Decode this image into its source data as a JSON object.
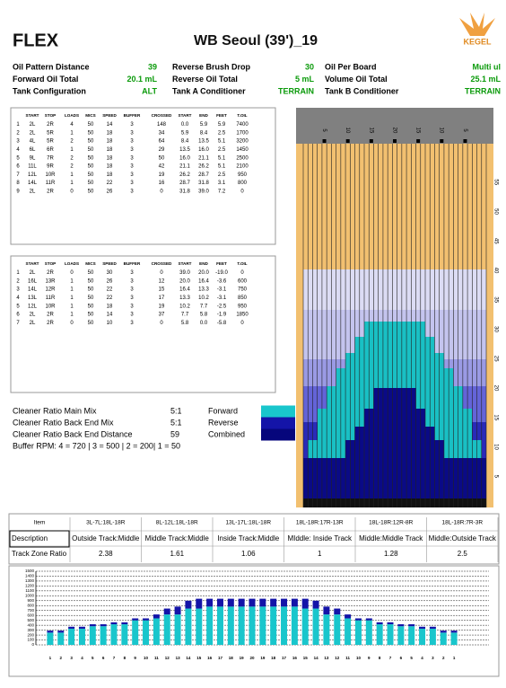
{
  "header": {
    "logo": "FLEX",
    "title": "WB Seoul (39')_19",
    "brand": "KEGEL"
  },
  "summary": [
    [
      {
        "label": "Oil Pattern Distance",
        "value": "39"
      },
      {
        "label": "Reverse Brush Drop",
        "value": "30"
      },
      {
        "label": "Oil Per Board",
        "value": "Multi ul"
      }
    ],
    [
      {
        "label": "Forward Oil Total",
        "value": "20.1 mL"
      },
      {
        "label": "Reverse Oil Total",
        "value": "5 mL"
      },
      {
        "label": "Volume Oil Total",
        "value": "25.1 mL"
      }
    ],
    [
      {
        "label": "Tank Configuration",
        "value": "ALT"
      },
      {
        "label": "Tank A Conditioner",
        "value": "TERRAIN"
      },
      {
        "label": "Tank B Conditioner",
        "value": "TERRAIN"
      }
    ]
  ],
  "forward_table": {
    "columns": [
      "START",
      "STOP",
      "LOADS",
      "MICS",
      "SPEED",
      "BUFFER",
      "CROSSED",
      "START",
      "END",
      "FEET",
      "T.OIL"
    ],
    "rows": [
      [
        "1",
        "2L",
        "2R",
        "4",
        "50",
        "14",
        "3",
        "148",
        "0.0",
        "5.9",
        "5.9",
        "7400"
      ],
      [
        "2",
        "2L",
        "5R",
        "1",
        "50",
        "18",
        "3",
        "34",
        "5.9",
        "8.4",
        "2.5",
        "1700"
      ],
      [
        "3",
        "4L",
        "5R",
        "2",
        "50",
        "18",
        "3",
        "64",
        "8.4",
        "13.5",
        "5.1",
        "3200"
      ],
      [
        "4",
        "6L",
        "6R",
        "1",
        "50",
        "18",
        "3",
        "29",
        "13.5",
        "16.0",
        "2.5",
        "1450"
      ],
      [
        "5",
        "9L",
        "7R",
        "2",
        "50",
        "18",
        "3",
        "50",
        "16.0",
        "21.1",
        "5.1",
        "2500"
      ],
      [
        "6",
        "11L",
        "9R",
        "2",
        "50",
        "18",
        "3",
        "42",
        "21.1",
        "26.2",
        "5.1",
        "2100"
      ],
      [
        "7",
        "12L",
        "10R",
        "1",
        "50",
        "18",
        "3",
        "19",
        "26.2",
        "28.7",
        "2.5",
        "950"
      ],
      [
        "8",
        "14L",
        "11R",
        "1",
        "50",
        "22",
        "3",
        "16",
        "28.7",
        "31.8",
        "3.1",
        "800"
      ],
      [
        "9",
        "2L",
        "2R",
        "0",
        "50",
        "26",
        "3",
        "0",
        "31.8",
        "39.0",
        "7.2",
        "0"
      ]
    ]
  },
  "reverse_table": {
    "columns": [
      "START",
      "STOP",
      "LOADS",
      "MICS",
      "SPEED",
      "BUFFER",
      "CROSSED",
      "START",
      "END",
      "FEET",
      "T.OIL"
    ],
    "rows": [
      [
        "1",
        "2L",
        "2R",
        "0",
        "50",
        "30",
        "3",
        "0",
        "39.0",
        "20.0",
        "-19.0",
        "0"
      ],
      [
        "2",
        "16L",
        "13R",
        "1",
        "50",
        "26",
        "3",
        "12",
        "20.0",
        "16.4",
        "-3.6",
        "600"
      ],
      [
        "3",
        "14L",
        "12R",
        "1",
        "50",
        "22",
        "3",
        "15",
        "16.4",
        "13.3",
        "-3.1",
        "750"
      ],
      [
        "4",
        "13L",
        "11R",
        "1",
        "50",
        "22",
        "3",
        "17",
        "13.3",
        "10.2",
        "-3.1",
        "850"
      ],
      [
        "5",
        "12L",
        "10R",
        "1",
        "50",
        "18",
        "3",
        "19",
        "10.2",
        "7.7",
        "-2.5",
        "950"
      ],
      [
        "6",
        "2L",
        "2R",
        "1",
        "50",
        "14",
        "3",
        "37",
        "7.7",
        "5.8",
        "-1.9",
        "1850"
      ],
      [
        "7",
        "2L",
        "2R",
        "0",
        "50",
        "10",
        "3",
        "0",
        "5.8",
        "0.0",
        "-5.8",
        "0"
      ]
    ]
  },
  "cleaner": [
    {
      "label": "Cleaner Ratio Main Mix",
      "value": "5:1"
    },
    {
      "label": "Cleaner Ratio Back End Mix",
      "value": "5:1"
    },
    {
      "label": "Cleaner Ratio Back End Distance",
      "value": "59"
    }
  ],
  "buffer_rpm": "Buffer RPM: 4 = 720 | 3 = 500 | 2 = 200| 1 = 50",
  "legend": [
    {
      "name": "Forward",
      "color": "#19c6cc"
    },
    {
      "name": "Reverse",
      "color": "#1414a8"
    },
    {
      "name": "Combined",
      "color": "#06067c"
    }
  ],
  "lane_graph": {
    "board_labels": [
      "5",
      "10",
      "15",
      "20",
      "15",
      "10",
      "5"
    ],
    "distance_labels": [
      5,
      10,
      15,
      20,
      25,
      30,
      35,
      40,
      45,
      50,
      55
    ]
  },
  "track_zones": {
    "header": [
      "Item",
      "3L-7L:18L-18R",
      "8L-12L:18L-18R",
      "13L-17L:18L-18R",
      "18L-18R:17R-13R",
      "18L-18R:12R-8R",
      "18L-18R:7R-3R"
    ],
    "rows": [
      [
        "Description",
        "Outside Track:Middle",
        "Middle Track:Middle",
        "Inside Track:Middle",
        "MIddle: Inside Track",
        "Middle:Middle Track",
        "Middle:Outside Track"
      ],
      [
        "Track Zone Ratio",
        "2.38",
        "1.61",
        "1.06",
        "1",
        "1.28",
        "2.5"
      ]
    ]
  },
  "board_chart": {
    "type": "bar",
    "categories": [
      "1",
      "2",
      "3",
      "4",
      "5",
      "6",
      "7",
      "8",
      "9",
      "10",
      "11",
      "12",
      "13",
      "14",
      "15",
      "16",
      "17",
      "18",
      "19",
      "20",
      "19",
      "18",
      "17",
      "16",
      "15",
      "14",
      "13",
      "12",
      "11",
      "10",
      "9",
      "8",
      "7",
      "6",
      "5",
      "4",
      "3",
      "2",
      "1"
    ],
    "series": [
      {
        "color": "#19c6cc",
        "values": [
          250,
          250,
          330,
          330,
          380,
          380,
          420,
          420,
          500,
          500,
          540,
          620,
          620,
          740,
          740,
          780,
          780,
          780,
          780,
          780,
          780,
          780,
          780,
          780,
          740,
          740,
          620,
          620,
          540,
          500,
          500,
          420,
          420,
          380,
          380,
          330,
          330,
          250,
          250
        ]
      },
      {
        "color": "#1414a8",
        "values": [
          40,
          40,
          40,
          40,
          40,
          40,
          40,
          40,
          40,
          40,
          80,
          120,
          160,
          160,
          200,
          160,
          160,
          160,
          160,
          160,
          160,
          160,
          160,
          160,
          200,
          160,
          160,
          120,
          80,
          40,
          40,
          40,
          40,
          40,
          40,
          40,
          40,
          40,
          40
        ]
      }
    ],
    "ylim": [
      0,
      1500
    ],
    "yticks": [
      0,
      100,
      200,
      300,
      400,
      500,
      600,
      700,
      800,
      900,
      1000,
      1100,
      1200,
      1300,
      1400,
      1500
    ],
    "grid": true
  }
}
